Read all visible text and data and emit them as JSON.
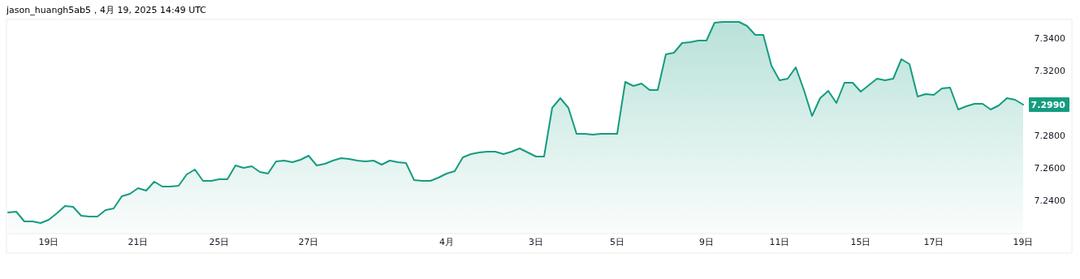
{
  "chart_data": {
    "type": "area",
    "color": "#149c80",
    "categories": [
      null,
      null,
      null,
      null,
      null,
      "19日",
      null,
      null,
      null,
      null,
      null,
      null,
      null,
      null,
      null,
      null,
      "21日",
      null,
      null,
      null,
      null,
      null,
      null,
      null,
      null,
      null,
      "25日",
      null,
      null,
      null,
      null,
      null,
      null,
      null,
      null,
      null,
      null,
      "27日",
      null,
      null,
      null,
      null,
      null,
      null,
      null,
      null,
      null,
      null,
      null,
      null,
      null,
      null,
      null,
      null,
      "4月",
      null,
      null,
      null,
      null,
      null,
      null,
      null,
      null,
      null,
      null,
      "3日",
      null,
      null,
      null,
      null,
      null,
      null,
      null,
      null,
      null,
      "5日",
      null,
      null,
      null,
      null,
      null,
      null,
      null,
      null,
      null,
      null,
      "9日",
      null,
      null,
      null,
      null,
      null,
      null,
      null,
      null,
      "11日",
      null,
      null,
      null,
      null,
      null,
      null,
      null,
      null,
      null,
      "15日",
      null,
      null,
      null,
      null,
      null,
      null,
      null,
      null,
      "17日",
      null,
      null,
      null,
      null,
      null,
      null,
      null,
      null,
      null,
      null,
      "19日"
    ],
    "values": [
      7.2325,
      7.233,
      7.227,
      7.227,
      7.226,
      7.228,
      7.232,
      7.2365,
      7.236,
      7.2305,
      7.23,
      7.23,
      7.234,
      7.235,
      7.2425,
      7.244,
      7.2475,
      7.246,
      7.2515,
      7.2485,
      7.2485,
      7.249,
      7.256,
      7.259,
      7.252,
      7.252,
      7.253,
      7.253,
      7.2615,
      7.26,
      7.261,
      7.2575,
      7.2565,
      7.264,
      7.2645,
      7.2635,
      7.265,
      7.2675,
      7.2615,
      7.2625,
      7.2645,
      7.266,
      7.2655,
      7.2645,
      7.264,
      7.2645,
      7.262,
      7.2645,
      7.2635,
      7.263,
      7.2525,
      7.252,
      7.252,
      7.254,
      7.2565,
      7.258,
      7.2665,
      7.2685,
      7.2695,
      7.27,
      7.27,
      7.2685,
      7.27,
      7.272,
      7.2695,
      7.267,
      7.267,
      7.297,
      7.303,
      7.297,
      7.281,
      7.281,
      7.2805,
      7.281,
      7.281,
      7.281,
      7.313,
      7.3105,
      7.312,
      7.308,
      7.308,
      7.33,
      7.331,
      7.337,
      7.3375,
      7.3385,
      7.3385,
      7.3495,
      7.35,
      7.35,
      7.35,
      7.3475,
      7.342,
      7.342,
      7.323,
      7.314,
      7.315,
      7.322,
      7.308,
      7.292,
      7.303,
      7.3075,
      7.3,
      7.3125,
      7.3125,
      7.307,
      7.311,
      7.315,
      7.314,
      7.315,
      7.327,
      7.324,
      7.304,
      7.3055,
      7.305,
      7.309,
      7.3095,
      7.296,
      7.298,
      7.2995,
      7.2995,
      7.296,
      7.2985,
      7.303,
      7.302,
      7.299
    ],
    "ylim": [
      7.2195,
      7.3515
    ],
    "yticks": [
      {
        "value": 7.24,
        "label": "7.2400"
      },
      {
        "value": 7.26,
        "label": "7.2600"
      },
      {
        "value": 7.28,
        "label": "7.2800"
      },
      {
        "value": 7.32,
        "label": "7.3200"
      },
      {
        "value": 7.34,
        "label": "7.3400"
      }
    ],
    "title": "jason_huangh5ab5，4月 19, 2025 14:49 UTC",
    "annotations": [
      "7.2990"
    ]
  }
}
